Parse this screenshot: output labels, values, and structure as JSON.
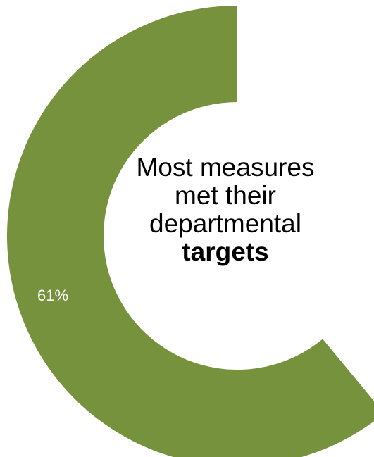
{
  "chart_data": {
    "type": "pie",
    "style": "donut",
    "series": [
      {
        "values": [
          61
        ],
        "labels": [
          "61%"
        ],
        "color": "#76923C"
      }
    ],
    "center_text": {
      "lines": [
        "Most measures",
        "met their",
        "departmental"
      ],
      "emphasis": "targets"
    },
    "legend": "none"
  }
}
